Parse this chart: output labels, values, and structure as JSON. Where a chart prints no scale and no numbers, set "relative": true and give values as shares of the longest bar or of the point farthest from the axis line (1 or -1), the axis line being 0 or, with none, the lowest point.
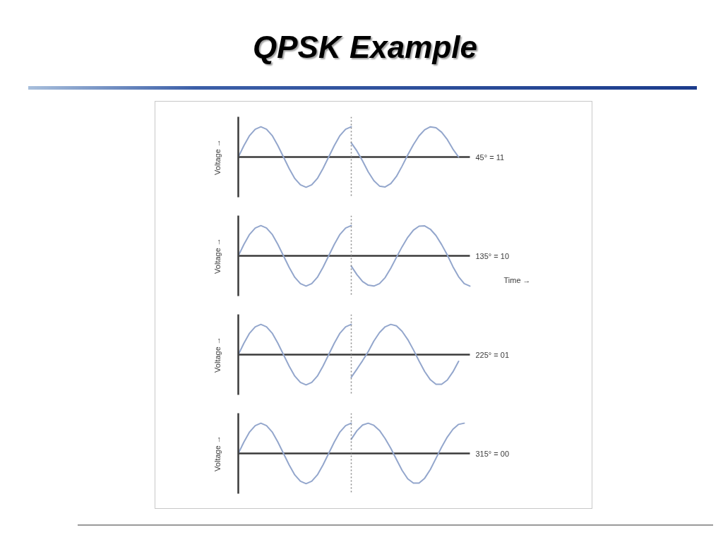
{
  "chart_data": [
    {
      "type": "line",
      "title": "QPSK Example",
      "relative": true,
      "grid": false,
      "ylabel": "Voltage →",
      "annotations": [
        "45° = 11"
      ],
      "categories": [
        null,
        null,
        null,
        null,
        null,
        null,
        null,
        null,
        null,
        null,
        null,
        null,
        null,
        null,
        null,
        null,
        null,
        null,
        null,
        null,
        null,
        null,
        null,
        null,
        null,
        null,
        null,
        null,
        null,
        null,
        null,
        null,
        null,
        null,
        null,
        null,
        null,
        null,
        null,
        null,
        null,
        null
      ],
      "series": [
        {
          "color": "#93a6cc",
          "values": [
            0,
            0.38,
            0.71,
            0.92,
            1,
            0.92,
            0.71,
            0.38,
            0,
            -0.38,
            -0.71,
            -0.92,
            -1,
            -0.92,
            -0.71,
            -0.38,
            0,
            0.38,
            0.71,
            0.92,
            1,
            null,
            null,
            null,
            null,
            null,
            null,
            null,
            null,
            null,
            null,
            null,
            null,
            null,
            null,
            null,
            null,
            null,
            null,
            null,
            null,
            null
          ]
        },
        {
          "color": "#93a6cc",
          "values": [
            null,
            null,
            null,
            null,
            null,
            null,
            null,
            null,
            null,
            null,
            null,
            null,
            null,
            null,
            null,
            null,
            null,
            null,
            null,
            null,
            0.47,
            0.2,
            -0.13,
            -0.49,
            -0.78,
            -0.96,
            -0.99,
            -0.88,
            -0.64,
            -0.3,
            0.07,
            0.41,
            0.7,
            0.9,
            1,
            0.97,
            0.82,
            0.58,
            0.26,
            0,
            null,
            null
          ]
        }
      ]
    },
    {
      "type": "line",
      "relative": true,
      "grid": false,
      "ylabel": "Voltage →",
      "xlabel": "Time →",
      "annotations": [
        "135° = 10"
      ],
      "categories": [
        null,
        null,
        null,
        null,
        null,
        null,
        null,
        null,
        null,
        null,
        null,
        null,
        null,
        null,
        null,
        null,
        null,
        null,
        null,
        null,
        null,
        null,
        null,
        null,
        null,
        null,
        null,
        null,
        null,
        null,
        null,
        null,
        null,
        null,
        null,
        null,
        null,
        null,
        null,
        null,
        null,
        null
      ],
      "series": [
        {
          "color": "#93a6cc",
          "values": [
            0,
            0.38,
            0.71,
            0.92,
            1,
            0.92,
            0.71,
            0.38,
            0,
            -0.38,
            -0.71,
            -0.92,
            -1,
            -0.92,
            -0.71,
            -0.38,
            0,
            0.38,
            0.71,
            0.92,
            1,
            null,
            null,
            null,
            null,
            null,
            null,
            null,
            null,
            null,
            null,
            null,
            null,
            null,
            null,
            null,
            null,
            null,
            null,
            null,
            null,
            null
          ]
        },
        {
          "color": "#93a6cc",
          "values": [
            null,
            null,
            null,
            null,
            null,
            null,
            null,
            null,
            null,
            null,
            null,
            null,
            null,
            null,
            null,
            null,
            null,
            null,
            null,
            null,
            -0.34,
            -0.62,
            -0.85,
            -0.97,
            -1,
            -0.92,
            -0.72,
            -0.41,
            -0.05,
            0.3,
            0.61,
            0.85,
            0.98,
            0.99,
            0.88,
            0.67,
            0.37,
            0.03,
            -0.36,
            -0.69,
            -0.92,
            -1
          ]
        }
      ]
    },
    {
      "type": "line",
      "relative": true,
      "grid": false,
      "ylabel": "Voltage →",
      "annotations": [
        "225° = 01"
      ],
      "categories": [
        null,
        null,
        null,
        null,
        null,
        null,
        null,
        null,
        null,
        null,
        null,
        null,
        null,
        null,
        null,
        null,
        null,
        null,
        null,
        null,
        null,
        null,
        null,
        null,
        null,
        null,
        null,
        null,
        null,
        null,
        null,
        null,
        null,
        null,
        null,
        null,
        null,
        null,
        null,
        null,
        null,
        null
      ],
      "series": [
        {
          "color": "#93a6cc",
          "values": [
            0,
            0.38,
            0.71,
            0.92,
            1,
            0.92,
            0.71,
            0.38,
            0,
            -0.38,
            -0.71,
            -0.92,
            -1,
            -0.92,
            -0.71,
            -0.38,
            0,
            0.38,
            0.71,
            0.92,
            1,
            null,
            null,
            null,
            null,
            null,
            null,
            null,
            null,
            null,
            null,
            null,
            null,
            null,
            null,
            null,
            null,
            null,
            null,
            null,
            null,
            null
          ]
        },
        {
          "color": "#93a6cc",
          "values": [
            null,
            null,
            null,
            null,
            null,
            null,
            null,
            null,
            null,
            null,
            null,
            null,
            null,
            null,
            null,
            null,
            null,
            null,
            null,
            null,
            -0.75,
            -0.48,
            -0.2,
            0.1,
            0.45,
            0.73,
            0.92,
            1,
            0.95,
            0.77,
            0.5,
            0.16,
            -0.21,
            -0.56,
            -0.83,
            -0.98,
            -0.98,
            -0.84,
            -0.57,
            -0.22,
            null,
            null
          ]
        }
      ]
    },
    {
      "type": "line",
      "relative": true,
      "grid": false,
      "ylabel": "Voltage →",
      "annotations": [
        "315° = 00"
      ],
      "categories": [
        null,
        null,
        null,
        null,
        null,
        null,
        null,
        null,
        null,
        null,
        null,
        null,
        null,
        null,
        null,
        null,
        null,
        null,
        null,
        null,
        null,
        null,
        null,
        null,
        null,
        null,
        null,
        null,
        null,
        null,
        null,
        null,
        null,
        null,
        null,
        null,
        null,
        null,
        null,
        null,
        null,
        null
      ],
      "series": [
        {
          "color": "#93a6cc",
          "values": [
            0,
            0.38,
            0.71,
            0.92,
            1,
            0.92,
            0.71,
            0.38,
            0,
            -0.38,
            -0.71,
            -0.92,
            -1,
            -0.92,
            -0.71,
            -0.38,
            0,
            0.38,
            0.71,
            0.92,
            1,
            null,
            null,
            null,
            null,
            null,
            null,
            null,
            null,
            null,
            null,
            null,
            null,
            null,
            null,
            null,
            null,
            null,
            null,
            null,
            null,
            null
          ]
        },
        {
          "color": "#93a6cc",
          "values": [
            null,
            null,
            null,
            null,
            null,
            null,
            null,
            null,
            null,
            null,
            null,
            null,
            null,
            null,
            null,
            null,
            null,
            null,
            null,
            null,
            0.47,
            0.75,
            0.94,
            1,
            0.93,
            0.76,
            0.49,
            0.17,
            -0.2,
            -0.56,
            -0.84,
            -0.98,
            -0.98,
            -0.82,
            -0.53,
            -0.16,
            0.21,
            0.54,
            0.8,
            0.96,
            1,
            null
          ]
        }
      ]
    }
  ]
}
